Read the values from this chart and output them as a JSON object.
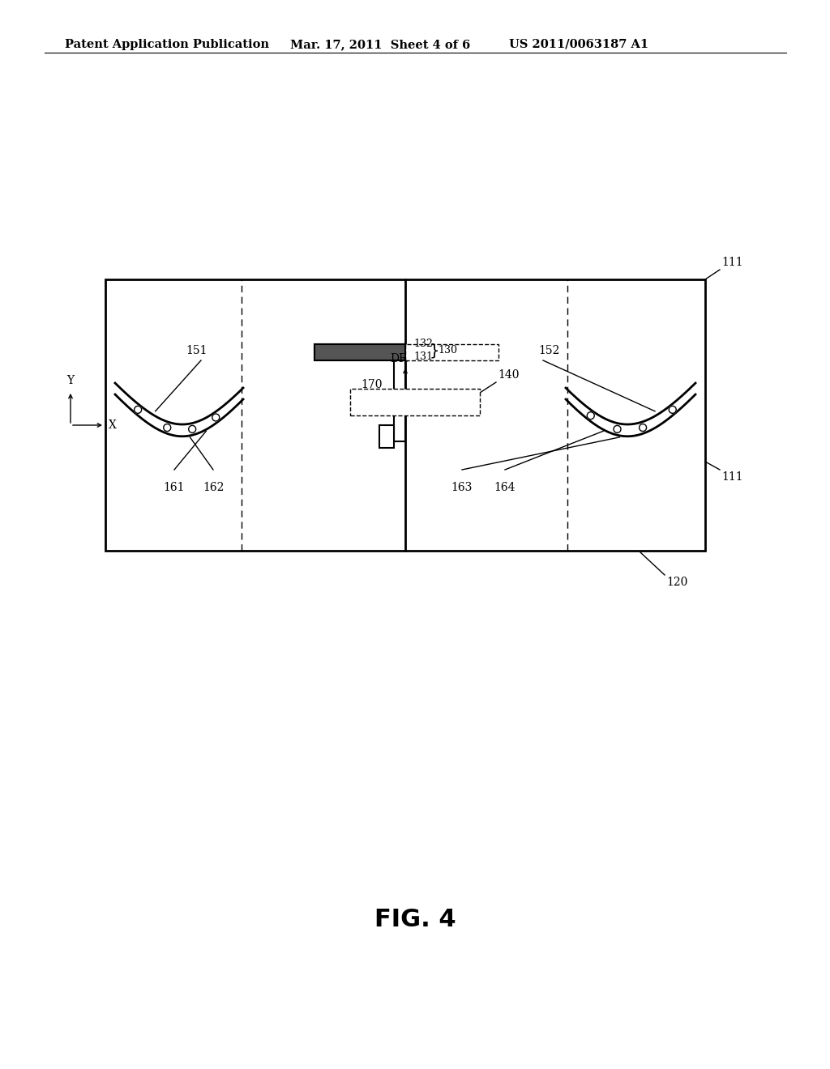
{
  "bg_color": "#ffffff",
  "line_color": "#000000",
  "header_left": "Patent Application Publication",
  "header_mid": "Mar. 17, 2011  Sheet 4 of 6",
  "header_right": "US 2011/0063187 A1",
  "fig_label": "FIG. 4"
}
